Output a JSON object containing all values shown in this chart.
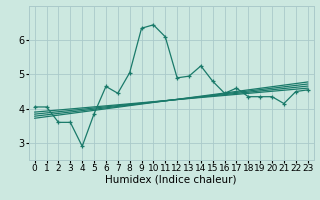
{
  "title": "",
  "xlabel": "Humidex (Indice chaleur)",
  "bg_color": "#cce8e0",
  "line_color": "#1a7a6a",
  "xlim": [
    -0.5,
    23.5
  ],
  "ylim": [
    2.5,
    7.0
  ],
  "xticks": [
    0,
    1,
    2,
    3,
    4,
    5,
    6,
    7,
    8,
    9,
    10,
    11,
    12,
    13,
    14,
    15,
    16,
    17,
    18,
    19,
    20,
    21,
    22,
    23
  ],
  "yticks": [
    3,
    4,
    5,
    6
  ],
  "main_x": [
    0,
    1,
    2,
    3,
    4,
    5,
    6,
    7,
    8,
    9,
    10,
    11,
    12,
    13,
    14,
    15,
    16,
    17,
    18,
    19,
    20,
    21,
    22,
    23
  ],
  "main_y": [
    4.05,
    4.05,
    3.6,
    3.6,
    2.9,
    3.85,
    4.65,
    4.45,
    5.05,
    6.35,
    6.45,
    6.1,
    4.9,
    4.95,
    5.25,
    4.8,
    4.45,
    4.6,
    4.35,
    4.35,
    4.35,
    4.15,
    4.5,
    4.55
  ],
  "band_lines": [
    {
      "x": [
        0,
        23
      ],
      "y": [
        3.72,
        4.78
      ]
    },
    {
      "x": [
        0,
        23
      ],
      "y": [
        3.78,
        4.72
      ]
    },
    {
      "x": [
        0,
        23
      ],
      "y": [
        3.84,
        4.66
      ]
    },
    {
      "x": [
        0,
        23
      ],
      "y": [
        3.9,
        4.6
      ]
    }
  ],
  "grid_color": "#aacaca",
  "grid_lw": 0.6,
  "line_lw": 0.9,
  "marker_size": 3.5,
  "tick_fontsize": 6.5,
  "xlabel_fontsize": 7.5
}
